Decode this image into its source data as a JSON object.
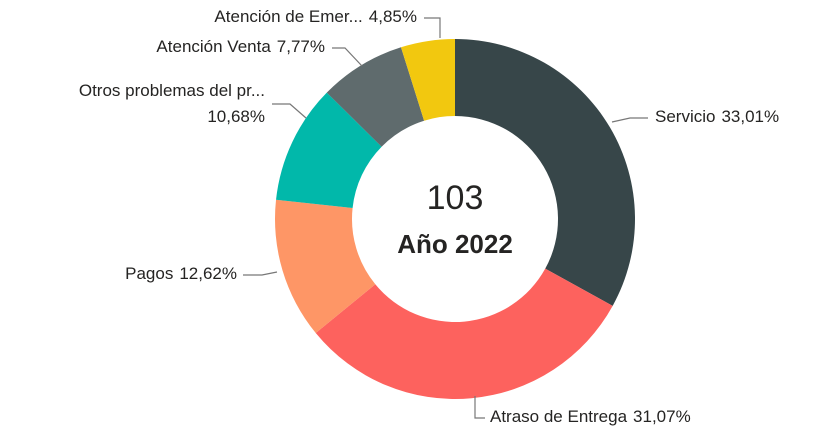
{
  "chart_data": {
    "type": "donut",
    "center_value": "103",
    "center_label": "Año 2022",
    "categories": [
      "Servicio",
      "Atraso de Entrega",
      "Pagos",
      "Otros problemas del pr...",
      "Atención Venta",
      "Atención de Emer..."
    ],
    "values": [
      33.01,
      31.07,
      12.62,
      10.68,
      7.77,
      4.85
    ],
    "value_labels": [
      "33,01%",
      "31,07%",
      "12,62%",
      "10,68%",
      "7,77%",
      "4,85%"
    ],
    "colors": [
      "#374649",
      "#fd625e",
      "#fe9666",
      "#01b8aa",
      "#5f6b6d",
      "#f2c80f"
    ]
  }
}
